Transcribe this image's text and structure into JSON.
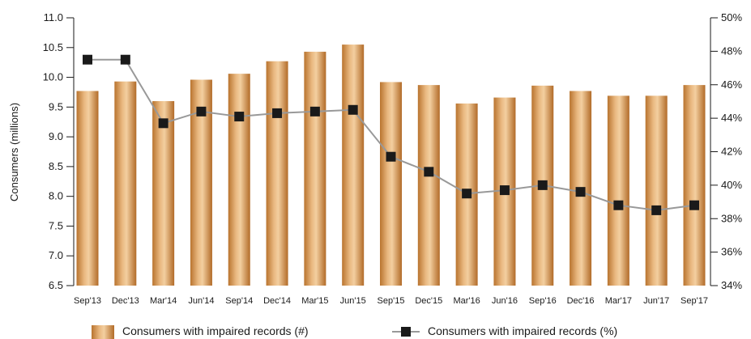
{
  "chart_data": {
    "type": "bar",
    "categories": [
      "Sep'13",
      "Dec'13",
      "Mar'14",
      "Jun'14",
      "Sep'14",
      "Dec'14",
      "Mar'15",
      "Jun'15",
      "Sep'15",
      "Dec'15",
      "Mar'16",
      "Jun'16",
      "Sep'16",
      "Dec'16",
      "Mar'17",
      "Jun'17",
      "Sep'17"
    ],
    "series": [
      {
        "name": "Consumers with impaired records (#)",
        "type": "bar",
        "axis": "left",
        "color": "#c8823c",
        "values": [
          9.77,
          9.93,
          9.6,
          9.96,
          10.06,
          10.27,
          10.43,
          10.55,
          9.92,
          9.87,
          9.56,
          9.66,
          9.86,
          9.77,
          9.69,
          9.69,
          9.87
        ]
      },
      {
        "name": "Consumers with impaired records (%)",
        "type": "line",
        "axis": "right",
        "color": "#999999",
        "marker_color": "#1a1a1a",
        "values": [
          47.5,
          47.5,
          43.7,
          44.4,
          44.1,
          44.3,
          44.4,
          44.5,
          41.7,
          40.8,
          39.5,
          39.7,
          40.0,
          39.6,
          38.8,
          38.5,
          38.8
        ]
      }
    ],
    "ylabel": "Consumers (millions)",
    "ylim": [
      6.5,
      11.0
    ],
    "yticks": [
      "6.5",
      "7.0",
      "7.5",
      "8.0",
      "8.5",
      "9.0",
      "9.5",
      "10.0",
      "10.5",
      "11.0"
    ],
    "y2lim": [
      34,
      50
    ],
    "y2ticks": [
      "34%",
      "36%",
      "38%",
      "40%",
      "42%",
      "44%",
      "46%",
      "48%",
      "50%"
    ],
    "legend_position": "bottom",
    "grid": false
  }
}
